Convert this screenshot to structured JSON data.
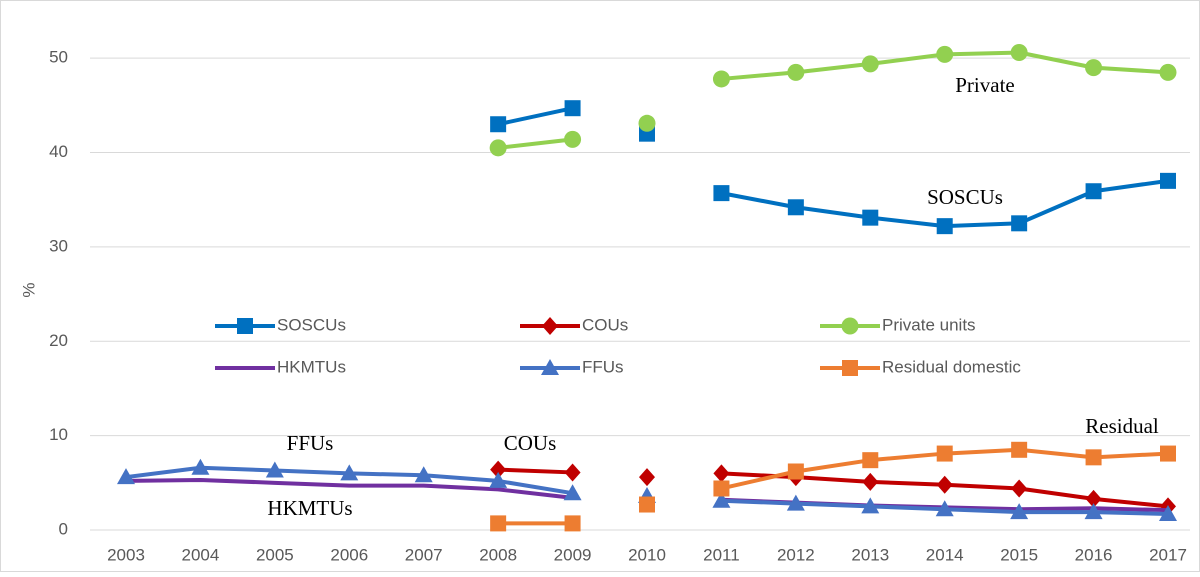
{
  "chart_data": {
    "type": "line",
    "y_label": "%",
    "categories": [
      "2003",
      "2004",
      "2005",
      "2006",
      "2007",
      "2008",
      "2009",
      "2010",
      "2011",
      "2012",
      "2013",
      "2014",
      "2015",
      "2016",
      "2017"
    ],
    "unconnected_category": "2010",
    "ylim": [
      0,
      55
    ],
    "yticks": [
      0,
      10,
      20,
      30,
      40,
      50
    ],
    "grid": true,
    "series": [
      {
        "name": "SOSCUs",
        "color": "#0070c0",
        "marker": "square",
        "values": [
          null,
          null,
          null,
          null,
          null,
          43.0,
          44.7,
          42.0,
          35.7,
          34.2,
          33.1,
          32.2,
          32.5,
          35.9,
          37.0
        ]
      },
      {
        "name": "COUs",
        "color": "#c00000",
        "marker": "diamond",
        "values": [
          null,
          null,
          null,
          null,
          null,
          6.4,
          6.1,
          5.6,
          6.0,
          5.6,
          5.1,
          4.8,
          4.4,
          3.3,
          2.5
        ]
      },
      {
        "name": "Private units",
        "color": "#92d050",
        "marker": "circle",
        "values": [
          null,
          null,
          null,
          null,
          null,
          40.5,
          41.4,
          43.1,
          47.8,
          48.5,
          49.4,
          50.4,
          50.6,
          49.0,
          48.5
        ]
      },
      {
        "name": "HKMTUs",
        "color": "#7030a0",
        "marker": "none",
        "values": [
          5.2,
          5.3,
          5.0,
          4.7,
          4.7,
          4.3,
          3.4,
          3.0,
          3.2,
          2.9,
          2.6,
          2.4,
          2.2,
          2.3,
          2.1
        ]
      },
      {
        "name": "FFUs",
        "color": "#4472c4",
        "marker": "triangle",
        "values": [
          5.6,
          6.6,
          6.3,
          6.0,
          5.8,
          5.2,
          3.9,
          3.6,
          3.1,
          2.8,
          2.5,
          2.2,
          1.9,
          1.9,
          1.7
        ]
      },
      {
        "name": "Residual domestic",
        "color": "#ed7d31",
        "marker": "square",
        "values": [
          null,
          null,
          null,
          null,
          null,
          0.7,
          0.7,
          2.7,
          4.4,
          6.2,
          7.4,
          8.1,
          8.5,
          7.7,
          8.1
        ]
      }
    ],
    "annotations": [
      "Private",
      "SOSCUs",
      "FFUs",
      "COUs",
      "HKMTUs",
      "Residual"
    ]
  }
}
